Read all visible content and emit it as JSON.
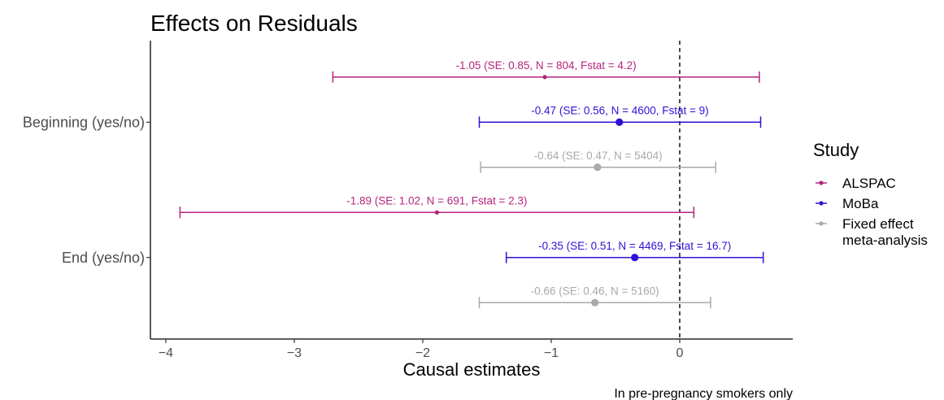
{
  "chart_data": {
    "type": "forest",
    "title": "Effects on Residuals",
    "xlabel": "Causal estimates",
    "ylabel": "",
    "caption": "In pre-pregnancy smokers only",
    "xlim": [
      -4.12,
      0.88
    ],
    "xticks": [
      -4,
      -3,
      -2,
      -1,
      0
    ],
    "reference_line": 0,
    "categories": [
      "Beginning (yes/no)",
      "End (yes/no)"
    ],
    "legend": {
      "title": "Study",
      "position": "right",
      "items": [
        "ALSPAC",
        "MoBa",
        "Fixed effect\nmeta-analysis"
      ]
    },
    "colors": {
      "ALSPAC": "#b5247e",
      "MoBa": "#2d12d6",
      "Fixed effect\nmeta-analysis": "#a9a9a9"
    },
    "rows": [
      {
        "category": "Beginning (yes/no)",
        "study": "ALSPAC",
        "estimate": -1.05,
        "lower": -2.7,
        "upper": 0.62,
        "label": "-1.05 (SE: 0.85, N = 804, Fstat = 4.2)"
      },
      {
        "category": "Beginning (yes/no)",
        "study": "MoBa",
        "estimate": -0.47,
        "lower": -1.56,
        "upper": 0.63,
        "label": "-0.47 (SE: 0.56, N = 4600, Fstat = 9)"
      },
      {
        "category": "Beginning (yes/no)",
        "study": "Fixed effect\nmeta-analysis",
        "estimate": -0.64,
        "lower": -1.55,
        "upper": 0.28,
        "label": "-0.64 (SE: 0.47, N = 5404)"
      },
      {
        "category": "End (yes/no)",
        "study": "ALSPAC",
        "estimate": -1.89,
        "lower": -3.89,
        "upper": 0.11,
        "label": "-1.89 (SE: 1.02, N = 691, Fstat = 2.3)"
      },
      {
        "category": "End (yes/no)",
        "study": "MoBa",
        "estimate": -0.35,
        "lower": -1.35,
        "upper": 0.65,
        "label": "-0.35 (SE: 0.51, N = 4469, Fstat = 16.7)"
      },
      {
        "category": "End (yes/no)",
        "study": "Fixed effect\nmeta-analysis",
        "estimate": -0.66,
        "lower": -1.56,
        "upper": 0.24,
        "label": "-0.66 (SE: 0.46, N = 5160)"
      }
    ]
  }
}
